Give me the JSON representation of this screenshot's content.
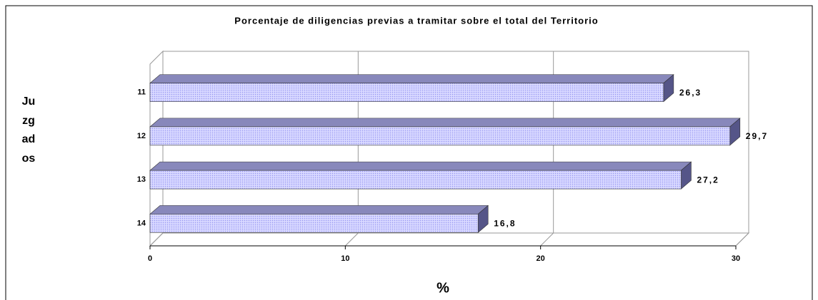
{
  "chart_data": {
    "type": "bar3d_horizontal",
    "title": "Porcentaje de diligencias previas a tramitar sobre el total del Territorio",
    "y_label": "Juzgados",
    "x_label": "%",
    "categories": [
      "11",
      "12",
      "13",
      "14"
    ],
    "values": [
      26.3,
      29.7,
      27.2,
      16.8
    ],
    "value_labels": [
      "26,3",
      "29,7",
      "27,2",
      "16,8"
    ],
    "color": "#ccccff",
    "xlim": [
      0,
      30
    ],
    "xticks": [
      0,
      10,
      20,
      30
    ],
    "grid": true
  }
}
